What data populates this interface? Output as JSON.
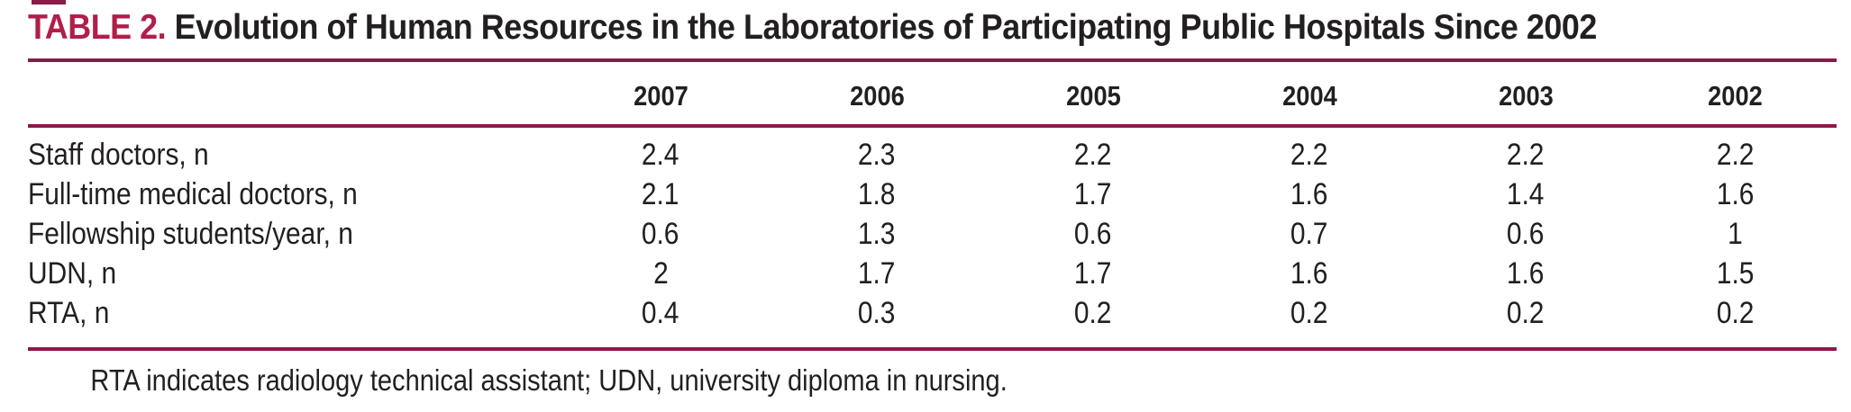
{
  "page": {
    "label": "TABLE 2.",
    "title": "Evolution of Human Resources in the Laboratories of Participating Public Hospitals Since 2002",
    "footnote": "RTA indicates radiology technical assistant; UDN, university diploma in nursing."
  },
  "columns": [
    "2007",
    "2006",
    "2005",
    "2004",
    "2003",
    "2002"
  ],
  "rows": [
    {
      "label": "Staff doctors, n",
      "values": [
        "2.4",
        "2.3",
        "2.2",
        "2.2",
        "2.2",
        "2.2"
      ]
    },
    {
      "label": "Full-time medical doctors, n",
      "values": [
        "2.1",
        "1.8",
        "1.7",
        "1.6",
        "1.4",
        "1.6"
      ]
    },
    {
      "label": "Fellowship students/year, n",
      "values": [
        "0.6",
        "1.3",
        "0.6",
        "0.7",
        "0.6",
        "1"
      ]
    },
    {
      "label": "UDN, n",
      "values": [
        "2",
        "1.7",
        "1.7",
        "1.6",
        "1.6",
        "1.5"
      ]
    },
    {
      "label": "RTA, n",
      "values": [
        "0.4",
        "0.3",
        "0.2",
        "0.2",
        "0.2",
        "0.2"
      ]
    }
  ],
  "colors": {
    "accent": "#b01e49",
    "rule": "#8a1a49",
    "text": "#231f20",
    "background": "#ffffff"
  },
  "chart_data": {
    "type": "table",
    "title": "TABLE 2. Evolution of Human Resources in the Laboratories of Participating Public Hospitals Since 2002",
    "categories": [
      "2007",
      "2006",
      "2005",
      "2004",
      "2003",
      "2002"
    ],
    "series": [
      {
        "name": "Staff doctors, n",
        "values": [
          2.4,
          2.3,
          2.2,
          2.2,
          2.2,
          2.2
        ]
      },
      {
        "name": "Full-time medical doctors, n",
        "values": [
          2.1,
          1.8,
          1.7,
          1.6,
          1.4,
          1.6
        ]
      },
      {
        "name": "Fellowship students/year, n",
        "values": [
          0.6,
          1.3,
          0.6,
          0.7,
          0.6,
          1
        ]
      },
      {
        "name": "UDN, n",
        "values": [
          2,
          1.7,
          1.7,
          1.6,
          1.6,
          1.5
        ]
      },
      {
        "name": "RTA, n",
        "values": [
          0.4,
          0.3,
          0.2,
          0.2,
          0.2,
          0.2
        ]
      }
    ],
    "footnote": "RTA indicates radiology technical assistant; UDN, university diploma in nursing."
  }
}
